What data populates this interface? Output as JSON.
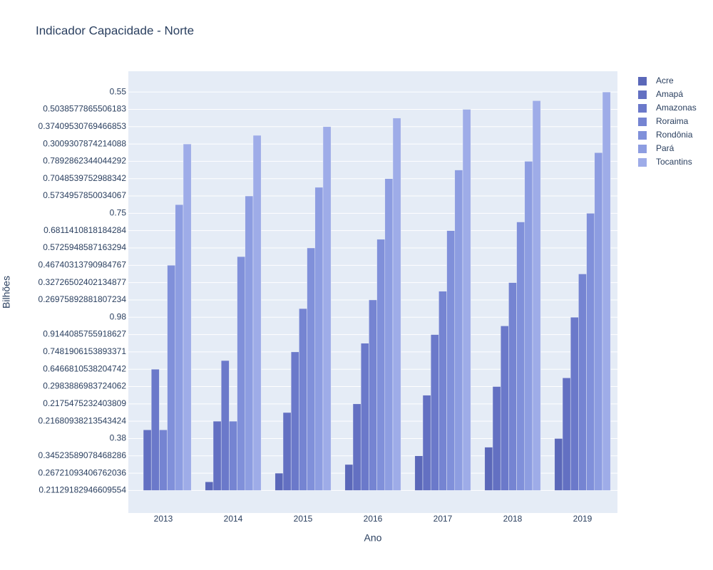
{
  "chart_data": {
    "type": "bar",
    "title": "Indicador Capacidade - Norte",
    "x_label": "Ano",
    "y_label": "Bilhões",
    "categories": [
      "2013",
      "2014",
      "2015",
      "2016",
      "2017",
      "2018",
      "2019"
    ],
    "series": [
      {
        "name": "Acre",
        "color": "#5b68b9",
        "values": [
          0,
          0.5,
          1,
          1.5,
          2,
          2.5,
          3
        ]
      },
      {
        "name": "Amapá",
        "color": "#6370c2",
        "values": [
          3.5,
          4,
          4.5,
          5,
          5.5,
          6,
          6.5
        ]
      },
      {
        "name": "Amazonas",
        "color": "#6b79ca",
        "values": [
          7,
          7.5,
          8,
          8.5,
          9,
          9.5,
          10
        ]
      },
      {
        "name": "Roraima",
        "color": "#7584d2",
        "values": [
          3.5,
          4,
          10.5,
          11,
          11.5,
          12,
          12.5
        ]
      },
      {
        "name": "Rondônia",
        "color": "#8090da",
        "values": [
          13,
          13.5,
          14,
          14.5,
          15,
          15.5,
          16
        ]
      },
      {
        "name": "Pará",
        "color": "#8d9de1",
        "values": [
          16.5,
          17,
          17.5,
          18,
          18.5,
          19,
          19.5
        ]
      },
      {
        "name": "Tocantins",
        "color": "#9eace8",
        "values": [
          20,
          20.5,
          21,
          21.5,
          22,
          22.5,
          23
        ]
      }
    ],
    "ylim": [
      -1.3,
      24.2
    ],
    "yticks": [
      {
        "value": 0,
        "label": "0.21129182946609554"
      },
      {
        "value": 1,
        "label": "0.26721093406762036"
      },
      {
        "value": 2,
        "label": "0.34523589078468286"
      },
      {
        "value": 3,
        "label": "0.38"
      },
      {
        "value": 4,
        "label": "0.21680938213543424"
      },
      {
        "value": 5,
        "label": "0.2175475232403809"
      },
      {
        "value": 6,
        "label": "0.2983886983724062"
      },
      {
        "value": 7,
        "label": "0.6466810538204742"
      },
      {
        "value": 8,
        "label": "0.7481906153893371"
      },
      {
        "value": 9,
        "label": "0.9144085755918627"
      },
      {
        "value": 10,
        "label": "0.98"
      },
      {
        "value": 11,
        "label": "0.26975892881807234"
      },
      {
        "value": 12,
        "label": "0.32726502402134877"
      },
      {
        "value": 13,
        "label": "0.46740313790984767"
      },
      {
        "value": 14,
        "label": "0.5725948587163294"
      },
      {
        "value": 15,
        "label": "0.6811410818184284"
      },
      {
        "value": 16,
        "label": "0.75"
      },
      {
        "value": 17,
        "label": "0.5734957850034067"
      },
      {
        "value": 18,
        "label": "0.7048539752988342"
      },
      {
        "value": 19,
        "label": "0.7892862344044292"
      },
      {
        "value": 20,
        "label": "0.3009307874214088"
      },
      {
        "value": 21,
        "label": "0.37409530769466853"
      },
      {
        "value": 22,
        "label": "0.5038577865506183"
      },
      {
        "value": 23,
        "label": "0.55"
      }
    ],
    "grid": true,
    "legend": "right"
  }
}
